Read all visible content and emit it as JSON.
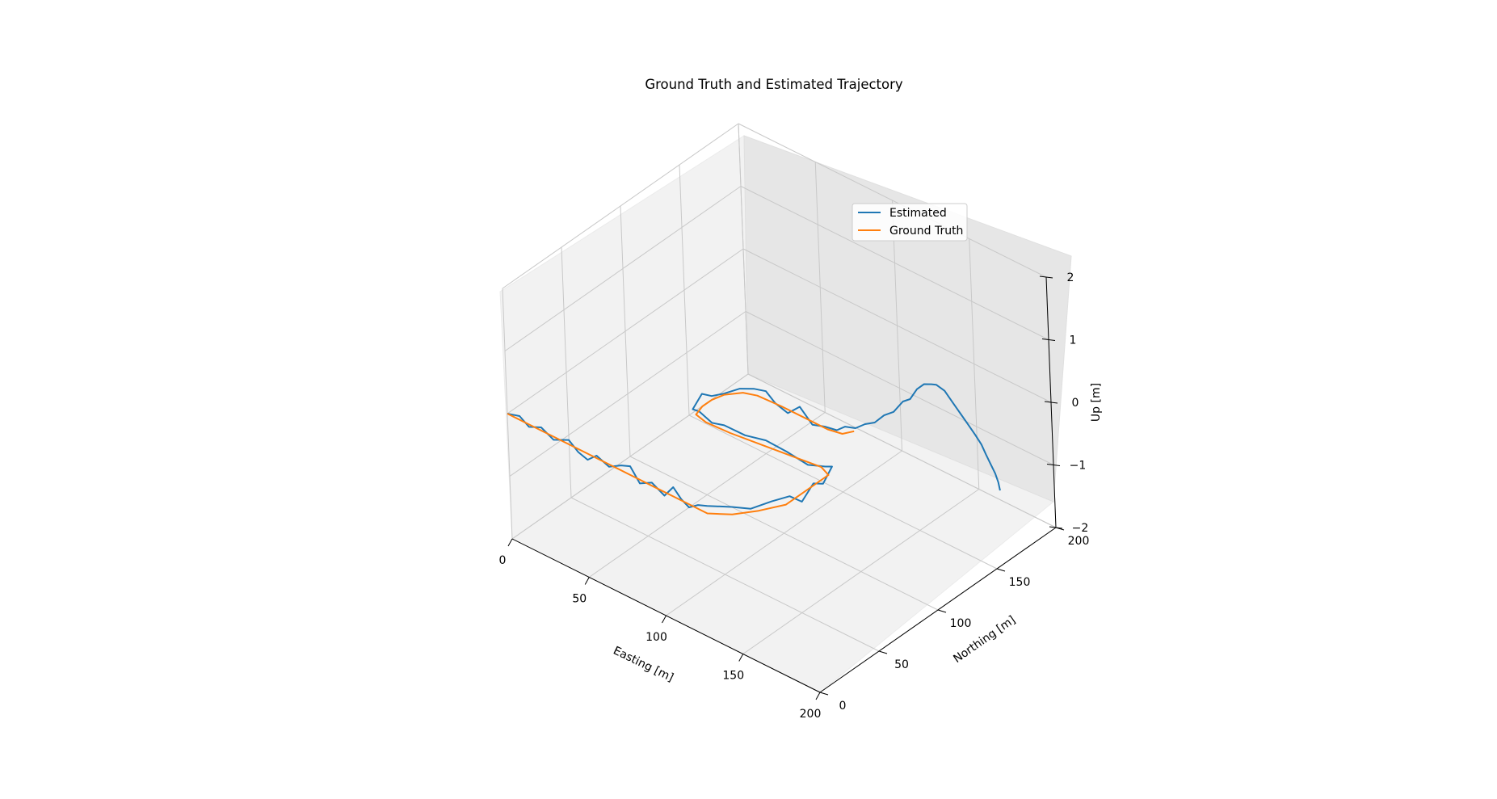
{
  "chart_data": {
    "type": "line",
    "projection": "3d",
    "title": "Ground Truth and Estimated Trajectory",
    "xlabel": "Easting [m]",
    "ylabel": "Northing [m]",
    "zlabel": "Up [m]",
    "xlim": [
      0,
      200
    ],
    "ylim": [
      0,
      200
    ],
    "zlim": [
      -2,
      2
    ],
    "xticks": [
      0,
      50,
      100,
      150,
      200
    ],
    "yticks": [
      0,
      50,
      100,
      150,
      200
    ],
    "zticks": [
      -2,
      -1,
      0,
      1,
      2
    ],
    "grid": true,
    "legend": "upper-right",
    "series": [
      {
        "name": "Estimated",
        "color": "#1f77b4",
        "points": [
          [
            0,
            0,
            0
          ],
          [
            8,
            0,
            0.06
          ],
          [
            14,
            0,
            -0.04
          ],
          [
            22,
            0,
            0.05
          ],
          [
            30,
            0,
            -0.05
          ],
          [
            40,
            0,
            0.07
          ],
          [
            46,
            0,
            -0.05
          ],
          [
            52,
            0,
            -0.1
          ],
          [
            58,
            0,
            0.04
          ],
          [
            66,
            0,
            -0.04
          ],
          [
            74,
            0,
            0.08
          ],
          [
            80,
            0,
            0.14
          ],
          [
            86,
            0,
            -0.06
          ],
          [
            94,
            0,
            0.05
          ],
          [
            102,
            0,
            -0.06
          ],
          [
            108,
            0,
            0.15
          ],
          [
            113,
            0,
            0.02
          ],
          [
            118,
            0,
            -0.05
          ],
          [
            124,
            0,
            0.06
          ],
          [
            130,
            0,
            0.12
          ],
          [
            140,
            8,
            0.12
          ],
          [
            146,
            16,
            0.06
          ],
          [
            152,
            26,
            0.12
          ],
          [
            156,
            36,
            0.12
          ],
          [
            156,
            46,
            -0.1
          ],
          [
            156,
            56,
            0.06
          ],
          [
            156,
            64,
            -0.05
          ],
          [
            156,
            72,
            0.12
          ],
          [
            150,
            74,
            0.02
          ],
          [
            140,
            72,
            -0.05
          ],
          [
            128,
            70,
            0.04
          ],
          [
            116,
            68,
            0.1
          ],
          [
            104,
            66,
            0.06
          ],
          [
            92,
            64,
            0.1
          ],
          [
            84,
            64,
            0.04
          ],
          [
            76,
            64,
            0.12
          ],
          [
            70,
            66,
            0.06
          ],
          [
            70,
            74,
            0.2
          ],
          [
            70,
            82,
            0.06
          ],
          [
            72,
            90,
            0.02
          ],
          [
            76,
            98,
            0.04
          ],
          [
            82,
            102,
            0.06
          ],
          [
            90,
            102,
            0.12
          ],
          [
            96,
            102,
            0.0
          ],
          [
            104,
            102,
            -0.06
          ],
          [
            112,
            102,
            0.14
          ],
          [
            120,
            102,
            -0.05
          ],
          [
            128,
            102,
            0.02
          ],
          [
            136,
            102,
            0.06
          ],
          [
            140,
            104,
            0.14
          ],
          [
            142,
            110,
            0.06
          ],
          [
            142,
            118,
            0.02
          ],
          [
            142,
            126,
            -0.06
          ],
          [
            142,
            134,
            -0.05
          ],
          [
            142,
            142,
            -0.1
          ],
          [
            142,
            150,
            -0.04
          ],
          [
            142,
            156,
            -0.08
          ],
          [
            142,
            162,
            0.0
          ],
          [
            142,
            168,
            0.0
          ],
          [
            142,
            174,
            -0.08
          ],
          [
            142,
            178,
            -0.14
          ],
          [
            145,
            181,
            -0.24
          ],
          [
            149,
            182,
            -0.38
          ],
          [
            153,
            183,
            -0.52
          ],
          [
            157,
            184,
            -0.66
          ],
          [
            161,
            185,
            -0.8
          ],
          [
            164,
            186,
            -0.93
          ],
          [
            166,
            187,
            -1.08
          ],
          [
            168,
            188,
            -1.22
          ],
          [
            170,
            189,
            -1.36
          ],
          [
            171,
            190,
            -1.5
          ],
          [
            172,
            190,
            -1.62
          ]
        ]
      },
      {
        "name": "Ground Truth",
        "color": "#ff7f0e",
        "points": [
          [
            0,
            0,
            0
          ],
          [
            20,
            0,
            0
          ],
          [
            40,
            0,
            0
          ],
          [
            60,
            0,
            0
          ],
          [
            70,
            0,
            0
          ],
          [
            80,
            0,
            0
          ],
          [
            95,
            0,
            0
          ],
          [
            110,
            0,
            0
          ],
          [
            120,
            0,
            0
          ],
          [
            130,
            0,
            0
          ],
          [
            140,
            8,
            0
          ],
          [
            148,
            20,
            0
          ],
          [
            155,
            34,
            0
          ],
          [
            155,
            50,
            0
          ],
          [
            155,
            70,
            0
          ],
          [
            148,
            73,
            0
          ],
          [
            135,
            71,
            0
          ],
          [
            115,
            68,
            0
          ],
          [
            95,
            65,
            0
          ],
          [
            80,
            64,
            0
          ],
          [
            72,
            66,
            0
          ],
          [
            70,
            74,
            0
          ],
          [
            70,
            82,
            0
          ],
          [
            72,
            90,
            0
          ],
          [
            78,
            98,
            0
          ],
          [
            85,
            101,
            0
          ],
          [
            100,
            102,
            0
          ],
          [
            115,
            102,
            0
          ],
          [
            130,
            102,
            0
          ],
          [
            138,
            104,
            0
          ],
          [
            141,
            110,
            0
          ]
        ]
      }
    ]
  }
}
